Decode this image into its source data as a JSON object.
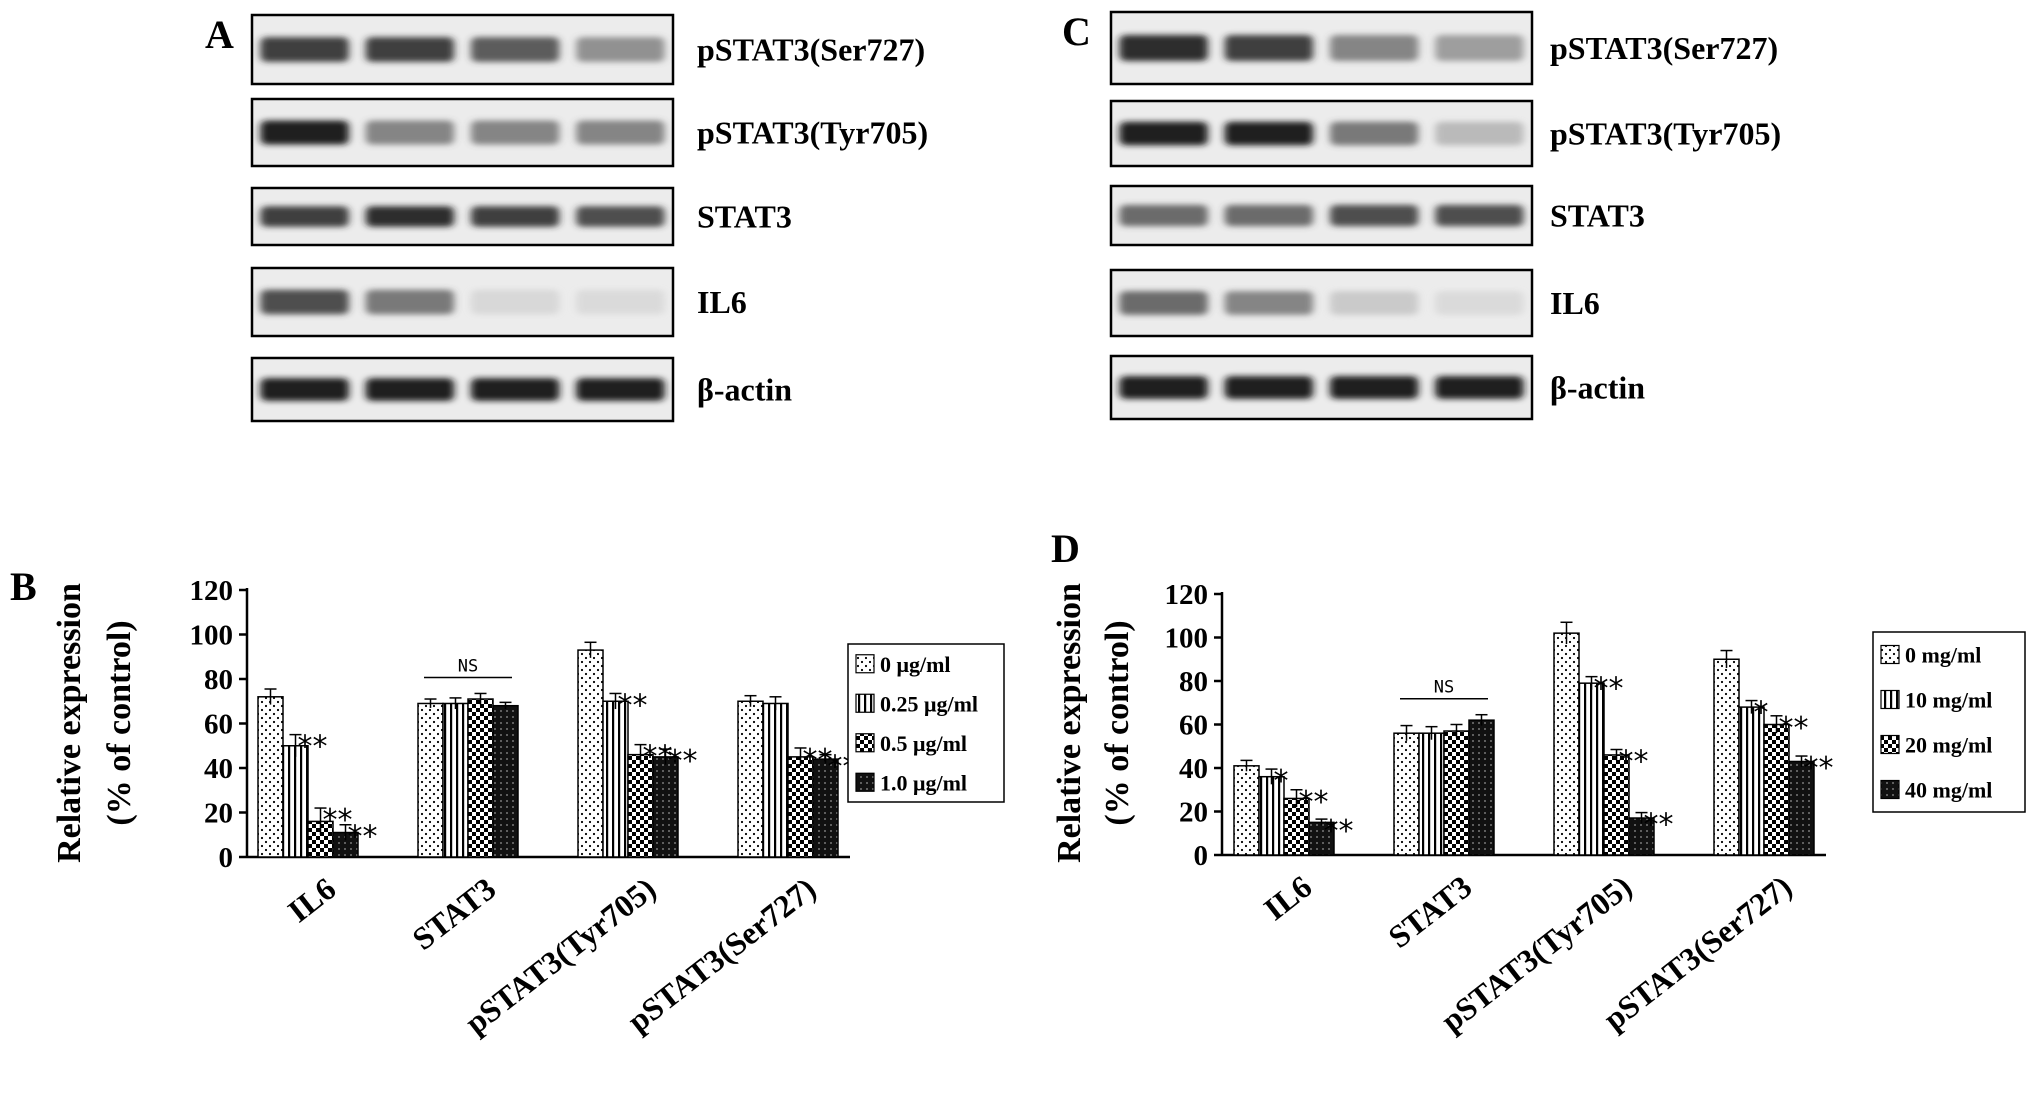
{
  "blots": [
    {
      "panel": "A",
      "rows": [
        {
          "label": "pSTAT3(Ser727)",
          "intensities": [
            0.85,
            0.85,
            0.75,
            0.55
          ]
        },
        {
          "label": "pSTAT3(Tyr705)",
          "intensities": [
            0.95,
            0.6,
            0.6,
            0.6
          ]
        },
        {
          "label": "STAT3",
          "intensities": [
            0.85,
            0.9,
            0.85,
            0.8
          ]
        },
        {
          "label": "IL6",
          "intensities": [
            0.8,
            0.65,
            0.15,
            0.12
          ]
        },
        {
          "label": "β-actin",
          "intensities": [
            0.95,
            0.95,
            0.95,
            0.95
          ]
        }
      ]
    },
    {
      "panel": "C",
      "rows": [
        {
          "label": "pSTAT3(Ser727)",
          "intensities": [
            0.9,
            0.85,
            0.6,
            0.5
          ]
        },
        {
          "label": "pSTAT3(Tyr705)",
          "intensities": [
            0.95,
            0.95,
            0.65,
            0.35
          ]
        },
        {
          "label": "STAT3",
          "intensities": [
            0.7,
            0.7,
            0.8,
            0.8
          ]
        },
        {
          "label": "IL6",
          "intensities": [
            0.7,
            0.6,
            0.25,
            0.12
          ]
        },
        {
          "label": "β-actin",
          "intensities": [
            0.95,
            0.95,
            0.95,
            0.95
          ]
        }
      ]
    }
  ],
  "chart_data": [
    {
      "panel": "B",
      "type": "bar",
      "ylabel": [
        "Relative expression",
        "(% of control)"
      ],
      "ylim": [
        0,
        120
      ],
      "yticks": [
        0,
        20,
        40,
        60,
        80,
        100,
        120
      ],
      "categories": [
        "IL6",
        "STAT3",
        "pSTAT3(Tyr705)",
        "pSTAT3(Ser727)"
      ],
      "legend_position": "right",
      "series": [
        {
          "name": "0 μg/ml",
          "pattern": "dots",
          "values": [
            72,
            69,
            93,
            70
          ],
          "errors": [
            3.5,
            2,
            3.5,
            2.5
          ]
        },
        {
          "name": "0.25 μg/ml",
          "pattern": "vlines",
          "values": [
            50,
            69,
            70,
            69
          ],
          "errors": [
            5,
            2.5,
            3.5,
            3
          ]
        },
        {
          "name": "0.5 μg/ml",
          "pattern": "checker",
          "values": [
            16,
            71,
            46,
            45
          ],
          "errors": [
            6,
            2.5,
            4.5,
            4
          ]
        },
        {
          "name": "1.0 μg/ml",
          "pattern": "dark",
          "values": [
            11,
            68,
            45,
            44
          ],
          "errors": [
            3.5,
            1.5,
            3.5,
            2
          ]
        }
      ],
      "annotations": [
        {
          "category": 0,
          "series": 1,
          "text": "**"
        },
        {
          "category": 0,
          "series": 2,
          "text": "**"
        },
        {
          "category": 0,
          "series": 3,
          "text": "**"
        },
        {
          "category": 2,
          "series": 1,
          "text": "**"
        },
        {
          "category": 2,
          "series": 2,
          "text": "**"
        },
        {
          "category": 2,
          "series": 3,
          "text": "**"
        },
        {
          "category": 3,
          "series": 2,
          "text": "**"
        },
        {
          "category": 3,
          "series": 3,
          "text": "**"
        }
      ],
      "ns_label": {
        "category": 1,
        "text": "NS"
      }
    },
    {
      "panel": "D",
      "type": "bar",
      "ylabel": [
        "Relative expression",
        "(% of control)"
      ],
      "ylim": [
        0,
        120
      ],
      "yticks": [
        0,
        20,
        40,
        60,
        80,
        100,
        120
      ],
      "categories": [
        "IL6",
        "STAT3",
        "pSTAT3(Tyr705)",
        "pSTAT3(Ser727)"
      ],
      "legend_position": "right",
      "series": [
        {
          "name": "0 mg/ml",
          "pattern": "dots",
          "values": [
            41,
            56,
            102,
            90
          ],
          "errors": [
            2.5,
            3.5,
            5,
            4
          ]
        },
        {
          "name": "10 mg/ml",
          "pattern": "vlines",
          "values": [
            36,
            56,
            79,
            68
          ],
          "errors": [
            3.5,
            3,
            3,
            3
          ]
        },
        {
          "name": "20 mg/ml",
          "pattern": "checker",
          "values": [
            26,
            57,
            46,
            60
          ],
          "errors": [
            4,
            3,
            2.5,
            4
          ]
        },
        {
          "name": "40 mg/ml",
          "pattern": "dark",
          "values": [
            15,
            62,
            17,
            43
          ],
          "errors": [
            1.5,
            2.5,
            2.5,
            2.5
          ]
        }
      ],
      "annotations": [
        {
          "category": 0,
          "series": 1,
          "text": "*"
        },
        {
          "category": 0,
          "series": 2,
          "text": "**"
        },
        {
          "category": 0,
          "series": 3,
          "text": "**"
        },
        {
          "category": 2,
          "series": 1,
          "text": "**"
        },
        {
          "category": 2,
          "series": 2,
          "text": "**"
        },
        {
          "category": 2,
          "series": 3,
          "text": "**"
        },
        {
          "category": 3,
          "series": 1,
          "text": "*"
        },
        {
          "category": 3,
          "series": 2,
          "text": "**"
        },
        {
          "category": 3,
          "series": 3,
          "text": "**"
        }
      ],
      "ns_label": {
        "category": 1,
        "text": "NS"
      }
    }
  ]
}
